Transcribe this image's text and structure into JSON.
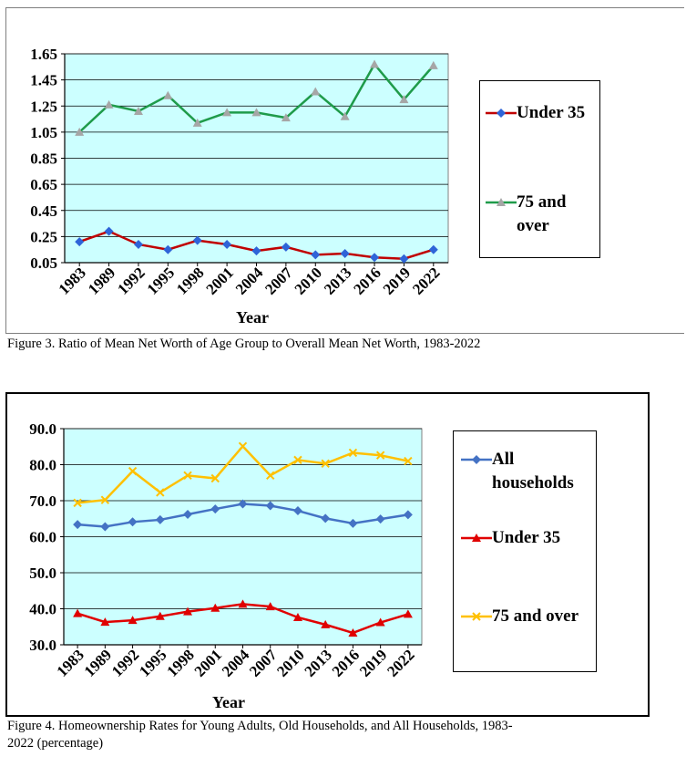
{
  "figure3": {
    "caption": "Figure 3. Ratio of Mean Net Worth of Age Group to Overall Mean Net Worth, 1983-2022",
    "chart_data": {
      "type": "line",
      "title": "",
      "xlabel": "Year",
      "ylabel": "",
      "categories": [
        "1983",
        "1989",
        "1992",
        "1995",
        "1998",
        "2001",
        "2004",
        "2007",
        "2010",
        "2013",
        "2016",
        "2019",
        "2022"
      ],
      "ylim": [
        0.05,
        1.65
      ],
      "yticks": [
        "1.65",
        "1.45",
        "1.25",
        "1.05",
        "0.85",
        "0.65",
        "0.45",
        "0.25",
        "0.05"
      ],
      "grid": true,
      "legend_position": "right",
      "series": [
        {
          "name": "Under 35",
          "color": "#c00000",
          "marker_color": "#2e64d8",
          "marker": "diamond",
          "values": [
            0.21,
            0.29,
            0.19,
            0.15,
            0.22,
            0.19,
            0.14,
            0.17,
            0.11,
            0.12,
            0.09,
            0.08,
            0.15
          ]
        },
        {
          "name": "75 and over",
          "color": "#1f9b4a",
          "marker_color": "#a6a6a6",
          "marker": "triangle",
          "values": [
            1.05,
            1.26,
            1.21,
            1.33,
            1.12,
            1.2,
            1.2,
            1.16,
            1.36,
            1.17,
            1.57,
            1.3,
            1.56
          ]
        }
      ],
      "legend": [
        {
          "label": "Under 35"
        },
        {
          "label_line1": "75 and",
          "label_line2": "over"
        }
      ]
    }
  },
  "figure4": {
    "caption_line1": "Figure 4. Homeownership Rates for Young Adults, Old Households, and All Households, 1983-",
    "caption_line2": "2022 (percentage)",
    "chart_data": {
      "type": "line",
      "title": "",
      "xlabel": "Year",
      "ylabel": "",
      "categories": [
        "1983",
        "1989",
        "1992",
        "1995",
        "1998",
        "2001",
        "2004",
        "2007",
        "2010",
        "2013",
        "2016",
        "2019",
        "2022"
      ],
      "ylim": [
        30.0,
        90.0
      ],
      "yticks": [
        "90.0",
        "80.0",
        "70.0",
        "60.0",
        "50.0",
        "40.0",
        "30.0"
      ],
      "grid": true,
      "legend_position": "right",
      "series": [
        {
          "name": "All households",
          "color": "#4472c4",
          "marker_color": "#4472c4",
          "marker": "diamond",
          "values": [
            63.4,
            62.8,
            64.1,
            64.7,
            66.2,
            67.7,
            69.1,
            68.6,
            67.2,
            65.1,
            63.7,
            64.9,
            66.1
          ]
        },
        {
          "name": "Under 35",
          "color": "#e00000",
          "marker_color": "#e00000",
          "marker": "triangle",
          "values": [
            38.7,
            36.3,
            36.8,
            37.9,
            39.2,
            40.2,
            41.3,
            40.6,
            37.6,
            35.6,
            33.3,
            36.2,
            38.5
          ]
        },
        {
          "name": "75 and over",
          "color": "#ffc000",
          "marker_color": "#ffc000",
          "marker": "x",
          "values": [
            69.4,
            70.2,
            78.2,
            72.3,
            77.0,
            76.2,
            85.1,
            77.0,
            81.3,
            80.3,
            83.3,
            82.6,
            81.0
          ]
        }
      ],
      "legend": [
        {
          "label_line1": "All",
          "label_line2": "households"
        },
        {
          "label": "Under 35"
        },
        {
          "label": "75 and over"
        }
      ]
    }
  }
}
